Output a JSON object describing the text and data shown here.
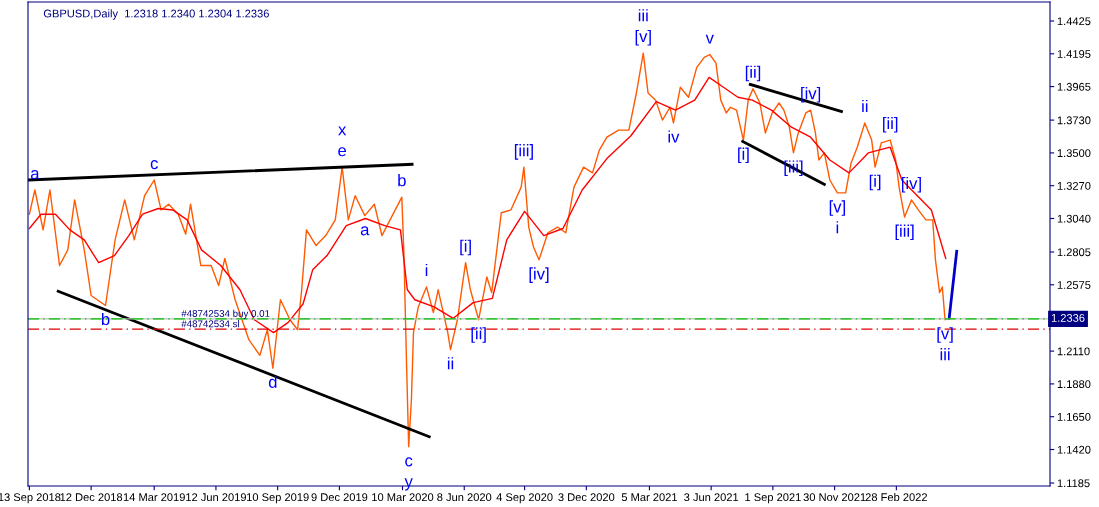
{
  "chart_data": {
    "type": "line",
    "title": "GBPUSD,Daily  1.2318 1.2340 1.2304 1.2336",
    "xlim": [
      "2018-09-11",
      "2022-10-10"
    ],
    "xticks": [
      {
        "value": "2018-09-13",
        "label": "13 Sep 2018"
      },
      {
        "value": "2018-12-12",
        "label": "12 Dec 2018"
      },
      {
        "value": "2019-03-14",
        "label": "14 Mar 2019"
      },
      {
        "value": "2019-06-12",
        "label": "12 Jun 2019"
      },
      {
        "value": "2019-09-10",
        "label": "10 Sep 2019"
      },
      {
        "value": "2019-12-09",
        "label": "9 Dec 2019"
      },
      {
        "value": "2020-03-10",
        "label": "10 Mar 2020"
      },
      {
        "value": "2020-06-08",
        "label": "8 Jun 2020"
      },
      {
        "value": "2020-09-04",
        "label": "4 Sep 2020"
      },
      {
        "value": "2020-12-03",
        "label": "3 Dec 2020"
      },
      {
        "value": "2021-03-05",
        "label": "5 Mar 2021"
      },
      {
        "value": "2021-06-03",
        "label": "3 Jun 2021"
      },
      {
        "value": "2021-09-01",
        "label": "1 Sep 2021"
      },
      {
        "value": "2021-11-30",
        "label": "30 Nov 2021"
      },
      {
        "value": "2022-02-28",
        "label": "28 Feb 2022"
      }
    ],
    "ylim": [
      1.1164,
      1.4558
    ],
    "yticks": [
      {
        "value": 1.1185,
        "label": "1.1185"
      },
      {
        "value": 1.142,
        "label": "1.1420"
      },
      {
        "value": 1.165,
        "label": "1.1650"
      },
      {
        "value": 1.188,
        "label": "1.1880"
      },
      {
        "value": 1.211,
        "label": "1.2110"
      },
      {
        "value": 1.2575,
        "label": "1.2575"
      },
      {
        "value": 1.2805,
        "label": "1.2805"
      },
      {
        "value": 1.304,
        "label": "1.3040"
      },
      {
        "value": 1.327,
        "label": "1.3270"
      },
      {
        "value": 1.35,
        "label": "1.3500"
      },
      {
        "value": 1.373,
        "label": "1.3730"
      },
      {
        "value": 1.3965,
        "label": "1.3965"
      },
      {
        "value": 1.4195,
        "label": "1.4195"
      },
      {
        "value": 1.4425,
        "label": "1.4425"
      }
    ],
    "grid": false,
    "series": [
      {
        "color": "#ff5a00",
        "x": [
          "2018-09-13",
          "2018-09-21",
          "2018-10-03",
          "2018-10-13",
          "2018-10-27",
          "2018-11-08",
          "2018-11-18",
          "2018-12-02",
          "2018-12-12",
          "2019-01-02",
          "2019-01-16",
          "2019-01-30",
          "2019-02-13",
          "2019-02-28",
          "2019-03-14",
          "2019-03-24",
          "2019-04-04",
          "2019-04-18",
          "2019-04-29",
          "2019-05-06",
          "2019-05-21",
          "2019-06-05",
          "2019-06-16",
          "2019-06-25",
          "2019-07-10",
          "2019-07-30",
          "2019-08-15",
          "2019-08-26",
          "2019-09-03",
          "2019-09-14",
          "2019-09-28",
          "2019-10-09",
          "2019-10-15",
          "2019-10-22",
          "2019-11-05",
          "2019-11-19",
          "2019-12-03",
          "2019-12-13",
          "2019-12-22",
          "2020-01-01",
          "2020-01-15",
          "2020-01-29",
          "2020-02-09",
          "2020-03-09",
          "2020-03-12",
          "2020-03-16",
          "2020-03-19",
          "2020-03-23",
          "2020-03-26",
          "2020-04-02",
          "2020-04-14",
          "2020-04-24",
          "2020-05-01",
          "2020-05-15",
          "2020-05-19",
          "2020-05-29",
          "2020-06-10",
          "2020-06-17",
          "2020-06-29",
          "2020-07-11",
          "2020-07-18",
          "2020-08-01",
          "2020-08-15",
          "2020-08-30",
          "2020-09-03",
          "2020-09-10",
          "2020-09-17",
          "2020-09-25",
          "2020-10-08",
          "2020-10-22",
          "2020-11-03",
          "2020-11-15",
          "2020-11-29",
          "2020-12-12",
          "2020-12-22",
          "2021-01-02",
          "2021-01-19",
          "2021-02-03",
          "2021-02-14",
          "2021-02-24",
          "2021-03-03",
          "2021-03-14",
          "2021-03-24",
          "2021-04-04",
          "2021-04-09",
          "2021-04-19",
          "2021-05-01",
          "2021-05-13",
          "2021-05-24",
          "2021-06-01",
          "2021-06-10",
          "2021-06-17",
          "2021-06-25",
          "2021-07-01",
          "2021-07-10",
          "2021-07-20",
          "2021-07-27",
          "2021-08-03",
          "2021-08-13",
          "2021-08-21",
          "2021-08-31",
          "2021-09-10",
          "2021-09-17",
          "2021-09-25",
          "2021-10-01",
          "2021-10-08",
          "2021-10-19",
          "2021-10-26",
          "2021-11-02",
          "2021-11-07",
          "2021-11-15",
          "2021-11-23",
          "2021-12-04",
          "2021-12-16",
          "2021-12-24",
          "2022-01-02",
          "2022-01-13",
          "2022-01-23",
          "2022-01-28",
          "2022-02-06",
          "2022-02-19",
          "2022-02-27",
          "2022-03-04",
          "2022-03-12",
          "2022-03-22",
          "2022-04-01",
          "2022-04-12",
          "2022-04-22",
          "2022-04-26",
          "2022-05-02",
          "2022-05-06",
          "2022-05-10",
          "2022-05-12"
        ],
        "values": [
          1.307,
          1.324,
          1.296,
          1.324,
          1.271,
          1.282,
          1.317,
          1.282,
          1.25,
          1.243,
          1.289,
          1.317,
          1.289,
          1.32,
          1.331,
          1.31,
          1.314,
          1.307,
          1.293,
          1.314,
          1.271,
          1.271,
          1.257,
          1.276,
          1.247,
          1.219,
          1.208,
          1.226,
          1.199,
          1.247,
          1.233,
          1.226,
          1.254,
          1.296,
          1.285,
          1.292,
          1.303,
          1.34,
          1.303,
          1.32,
          1.306,
          1.314,
          1.292,
          1.319,
          1.28,
          1.2,
          1.144,
          1.177,
          1.224,
          1.242,
          1.256,
          1.238,
          1.254,
          1.224,
          1.212,
          1.233,
          1.273,
          1.254,
          1.233,
          1.263,
          1.252,
          1.308,
          1.31,
          1.326,
          1.34,
          1.298,
          1.284,
          1.275,
          1.294,
          1.298,
          1.294,
          1.326,
          1.34,
          1.336,
          1.352,
          1.361,
          1.366,
          1.366,
          1.392,
          1.42,
          1.392,
          1.387,
          1.373,
          1.382,
          1.371,
          1.396,
          1.389,
          1.41,
          1.417,
          1.419,
          1.413,
          1.387,
          1.378,
          1.382,
          1.38,
          1.359,
          1.387,
          1.395,
          1.385,
          1.364,
          1.378,
          1.385,
          1.38,
          1.368,
          1.35,
          1.364,
          1.378,
          1.38,
          1.364,
          1.345,
          1.35,
          1.331,
          1.322,
          1.322,
          1.343,
          1.354,
          1.371,
          1.359,
          1.34,
          1.357,
          1.359,
          1.345,
          1.326,
          1.305,
          1.317,
          1.31,
          1.303,
          1.303,
          1.275,
          1.252,
          1.256,
          1.233,
          1.2336
        ]
      },
      {
        "color": "#ff0000",
        "x": [
          "2018-09-13",
          "2018-09-30",
          "2018-10-21",
          "2018-11-11",
          "2018-12-02",
          "2018-12-23",
          "2019-01-15",
          "2019-02-05",
          "2019-02-25",
          "2019-03-20",
          "2019-04-10",
          "2019-05-01",
          "2019-05-22",
          "2019-06-19",
          "2019-07-17",
          "2019-08-07",
          "2019-09-04",
          "2019-09-25",
          "2019-10-17",
          "2019-10-31",
          "2019-11-21",
          "2019-12-19",
          "2020-01-16",
          "2020-02-13",
          "2020-03-07",
          "2020-03-17",
          "2020-03-28",
          "2020-04-25",
          "2020-05-23",
          "2020-06-21",
          "2020-07-19",
          "2020-08-09",
          "2020-09-04",
          "2020-10-02",
          "2020-10-30",
          "2020-11-27",
          "2021-01-02",
          "2021-02-06",
          "2021-03-15",
          "2021-04-12",
          "2021-05-10",
          "2021-05-31",
          "2021-06-21",
          "2021-07-12",
          "2021-08-02",
          "2021-08-30",
          "2021-09-28",
          "2021-10-26",
          "2021-11-23",
          "2021-12-21",
          "2022-01-18",
          "2022-02-19",
          "2022-03-08",
          "2022-04-20",
          "2022-05-11"
        ],
        "values": [
          1.297,
          1.307,
          1.307,
          1.296,
          1.289,
          1.273,
          1.278,
          1.292,
          1.307,
          1.311,
          1.31,
          1.303,
          1.282,
          1.271,
          1.254,
          1.233,
          1.224,
          1.231,
          1.244,
          1.268,
          1.278,
          1.299,
          1.304,
          1.299,
          1.296,
          1.254,
          1.247,
          1.242,
          1.234,
          1.245,
          1.248,
          1.289,
          1.309,
          1.292,
          1.297,
          1.324,
          1.346,
          1.362,
          1.386,
          1.38,
          1.387,
          1.403,
          1.396,
          1.389,
          1.387,
          1.38,
          1.368,
          1.361,
          1.345,
          1.336,
          1.35,
          1.354,
          1.331,
          1.31,
          1.276
        ]
      },
      {
        "color": "#000000",
        "x": [
          "2018-09-11",
          "2020-03-24"
        ],
        "values": [
          1.331,
          1.342
        ]
      },
      {
        "color": "#000000",
        "x": [
          "2018-10-25",
          "2020-04-18"
        ],
        "values": [
          1.253,
          1.151
        ]
      },
      {
        "color": "#000000",
        "x": [
          "2021-07-30",
          "2021-12-10"
        ],
        "values": [
          1.398,
          1.379
        ]
      },
      {
        "color": "#000000",
        "x": [
          "2021-07-19",
          "2021-11-15"
        ],
        "values": [
          1.358,
          1.328
        ]
      },
      {
        "color": "#0000cc",
        "x": [
          "2022-05-16",
          "2022-05-27"
        ],
        "values": [
          1.234,
          1.281
        ]
      }
    ],
    "ref_lines": [
      {
        "axis": "y",
        "value": 1.2336,
        "label": "1.2336",
        "color": "#c0c0c0",
        "line_style": "solid"
      },
      {
        "axis": "y",
        "value": 1.2336,
        "label": "#48742534 buy 0.01",
        "color": "#00c000",
        "line_style": "dashdot"
      },
      {
        "axis": "y",
        "value": 1.2264,
        "label": "#48742534 sl",
        "color": "#e00000",
        "line_style": "dashdot"
      }
    ],
    "annotations": [
      {
        "text": "a",
        "x": "2018-09-21",
        "y": 1.324
      },
      {
        "text": "b",
        "x": "2019-01-02",
        "y": 1.243
      },
      {
        "text": "c",
        "x": "2019-03-14",
        "y": 1.331
      },
      {
        "text": "d",
        "x": "2019-09-03",
        "y": 1.199
      },
      {
        "text": "e",
        "x": "2019-12-13",
        "y": 1.34
      },
      {
        "text": "x",
        "x": "2019-12-13",
        "y": 1.34
      },
      {
        "text": "a",
        "x": "2020-01-15",
        "y": 1.306
      },
      {
        "text": "b",
        "x": "2020-03-09",
        "y": 1.319
      },
      {
        "text": "c",
        "x": "2020-03-19",
        "y": 1.144
      },
      {
        "text": "y",
        "x": "2020-03-19",
        "y": 1.144
      },
      {
        "text": "i",
        "x": "2020-04-14",
        "y": 1.256
      },
      {
        "text": "ii",
        "x": "2020-05-19",
        "y": 1.212
      },
      {
        "text": "[i]",
        "x": "2020-06-10",
        "y": 1.273
      },
      {
        "text": "[ii]",
        "x": "2020-06-29",
        "y": 1.233
      },
      {
        "text": "[iii]",
        "x": "2020-09-03",
        "y": 1.34
      },
      {
        "text": "[iv]",
        "x": "2020-09-25",
        "y": 1.275
      },
      {
        "text": "[v]",
        "x": "2021-02-24",
        "y": 1.42
      },
      {
        "text": "iii",
        "x": "2021-02-24",
        "y": 1.42
      },
      {
        "text": "iv",
        "x": "2021-04-09",
        "y": 1.371
      },
      {
        "text": "v",
        "x": "2021-06-01",
        "y": 1.419
      },
      {
        "text": "[i]",
        "x": "2021-07-20",
        "y": 1.359
      },
      {
        "text": "[ii]",
        "x": "2021-08-03",
        "y": 1.395
      },
      {
        "text": "[iii]",
        "x": "2021-10-01",
        "y": 1.35
      },
      {
        "text": "[iv]",
        "x": "2021-10-26",
        "y": 1.38
      },
      {
        "text": "[v]",
        "x": "2021-12-04",
        "y": 1.322
      },
      {
        "text": "i",
        "x": "2021-12-04",
        "y": 1.322
      },
      {
        "text": "ii",
        "x": "2022-01-13",
        "y": 1.371
      },
      {
        "text": "[i]",
        "x": "2022-01-28",
        "y": 1.34
      },
      {
        "text": "[ii]",
        "x": "2022-02-19",
        "y": 1.359
      },
      {
        "text": "[iii]",
        "x": "2022-03-12",
        "y": 1.305
      },
      {
        "text": "[iv]",
        "x": "2022-03-22",
        "y": 1.317
      },
      {
        "text": "[v]",
        "x": "2022-05-10",
        "y": 1.233
      },
      {
        "text": "iii",
        "x": "2022-05-10",
        "y": 1.233
      }
    ]
  }
}
